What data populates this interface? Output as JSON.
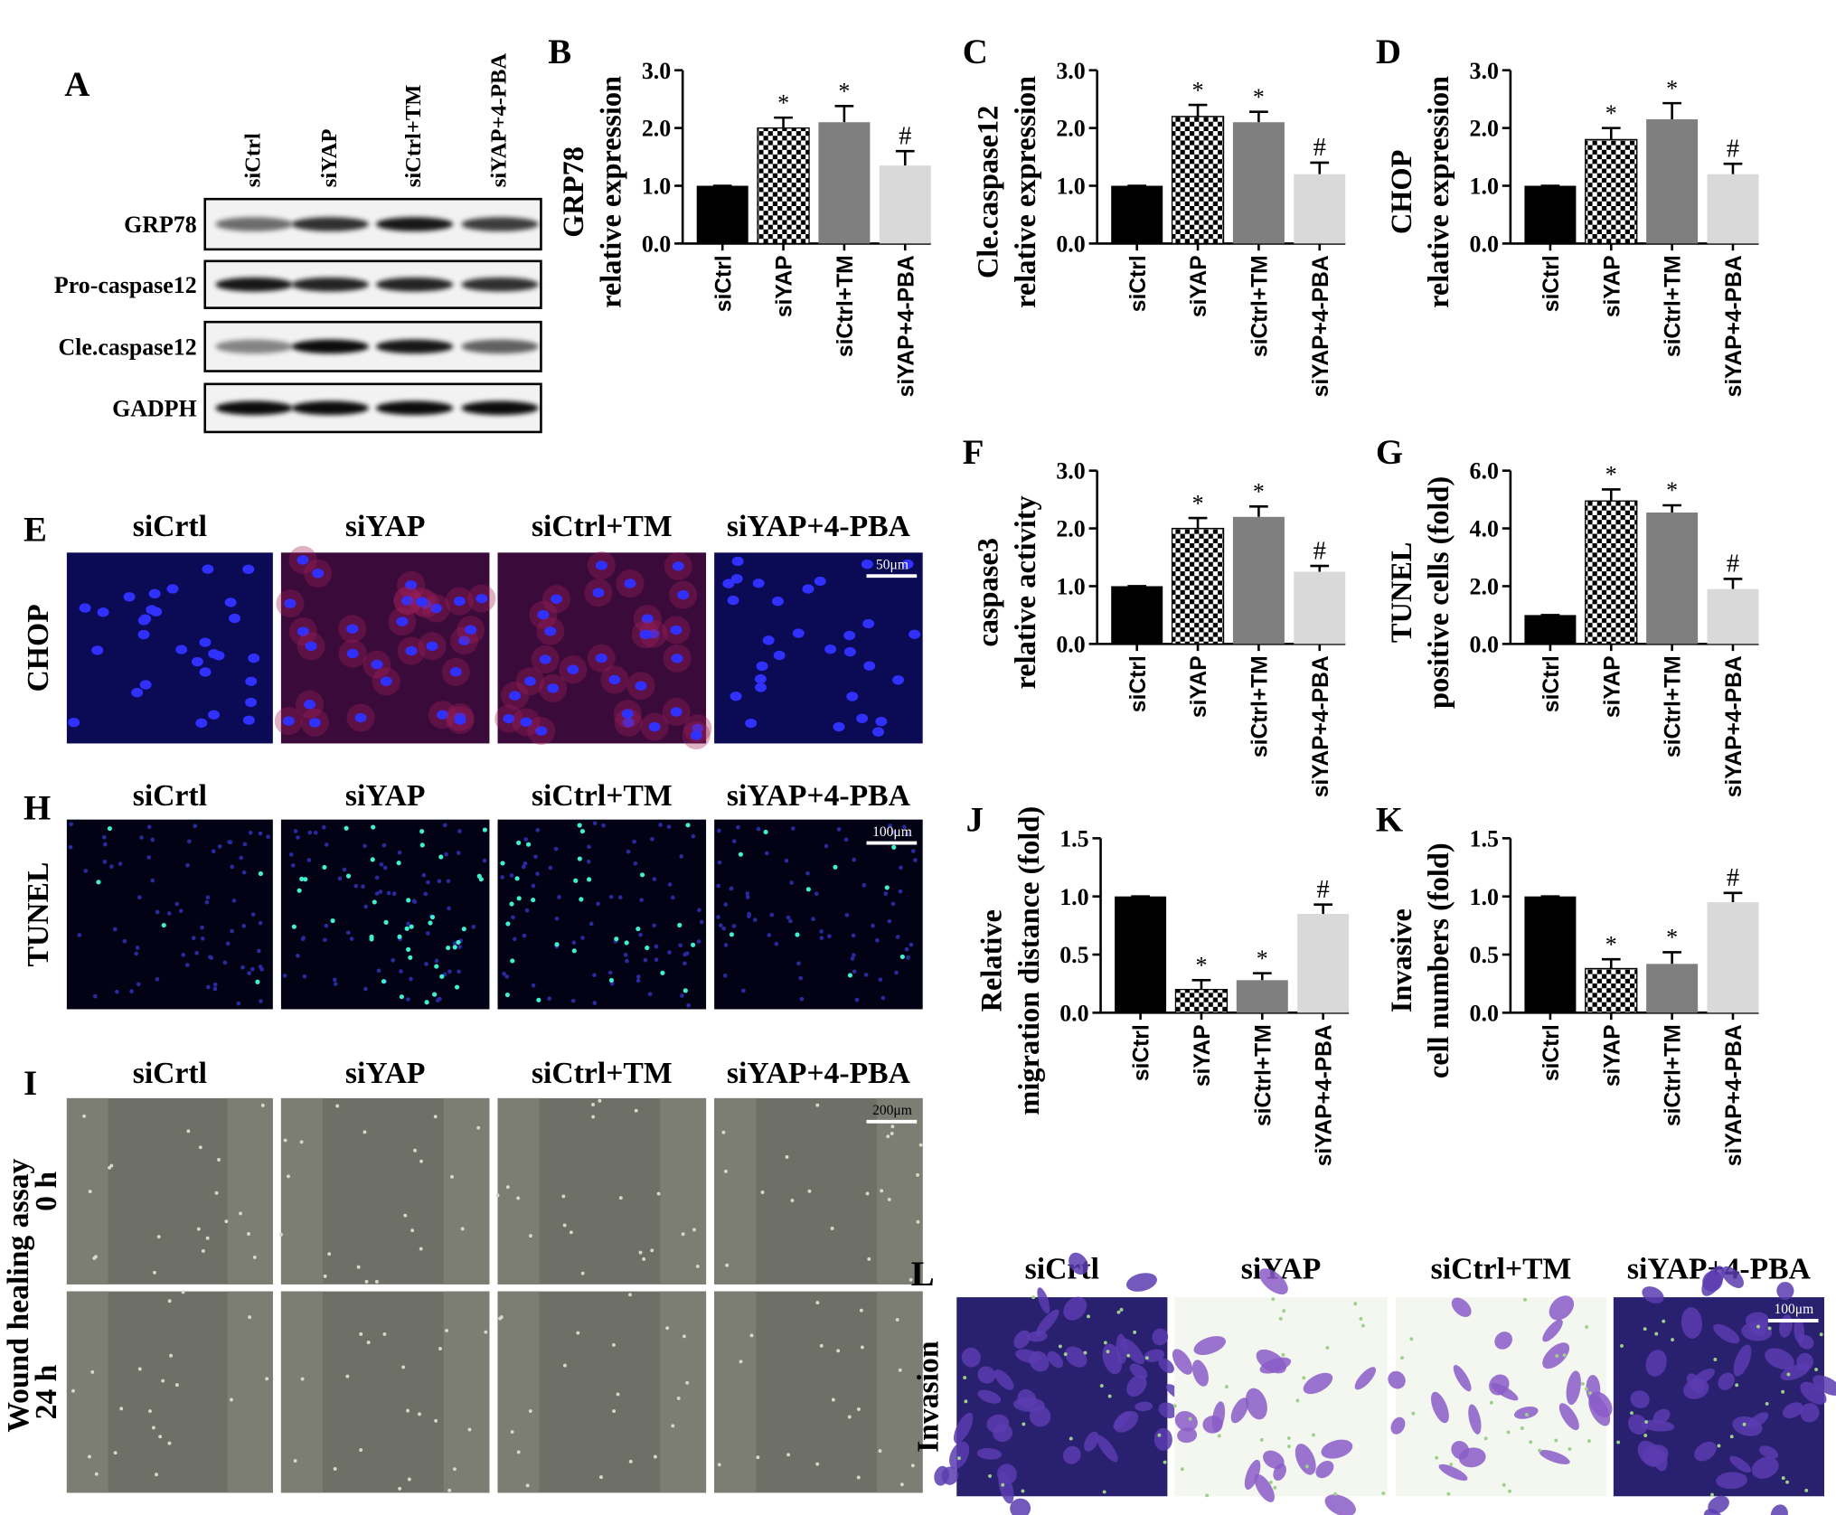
{
  "blot": {
    "panel_label": "A",
    "lanes": [
      "siCtrl",
      "siYAP",
      "siCtrl+TM",
      "siYAP+4-PBA"
    ],
    "rows": [
      "GRP78",
      "Pro-caspase12",
      "Cle.caspase12",
      "GADPH"
    ]
  },
  "image_panels": [
    {
      "panel_label": "E",
      "headers": [
        "siCrtl",
        "siYAP",
        "siCtrl+TM",
        "siYAP+4-PBA"
      ],
      "rows": [
        "CHOP"
      ],
      "scale_bar": "50μm"
    },
    {
      "panel_label": "H",
      "headers": [
        "siCrtl",
        "siYAP",
        "siCtrl+TM",
        "siYAP+4-PBA"
      ],
      "rows": [
        "TUNEL"
      ],
      "scale_bar": "100μm"
    },
    {
      "panel_label": "I",
      "headers": [
        "siCrtl",
        "siYAP",
        "siCtrl+TM",
        "siYAP+4-PBA"
      ],
      "group_label": "Wound healing assay",
      "rows": [
        "0 h",
        "24 h"
      ],
      "scale_bar": "200μm"
    },
    {
      "panel_label": "L",
      "headers": [
        "siCrtl",
        "siYAP",
        "siCtrl+TM",
        "siYAP+4-PBA"
      ],
      "rows": [
        "Invasion"
      ],
      "scale_bar": "100μm"
    }
  ],
  "chart_data": [
    {
      "type": "bar",
      "panel_label": "B",
      "ylabel": [
        "GRP78",
        "relative expression"
      ],
      "categories": [
        "siCtrl",
        "siYAP",
        "siCtrl+TM",
        "siYAP+4-PBA"
      ],
      "values": [
        1.0,
        2.0,
        2.1,
        1.35
      ],
      "errors": [
        0,
        0.18,
        0.28,
        0.25
      ],
      "annotations": [
        null,
        "*",
        "*",
        "#"
      ],
      "colors": [
        "#000000",
        "#000000",
        "#7f7f7f",
        "#d9d9d9"
      ],
      "hatch": [
        null,
        "checkerboard",
        null,
        null
      ],
      "ylim": [
        0,
        3
      ],
      "yticks": [
        {
          "value": 0,
          "label": "0.0"
        },
        {
          "value": 1,
          "label": "1.0"
        },
        {
          "value": 2,
          "label": "2.0"
        },
        {
          "value": 3,
          "label": "3.0"
        }
      ]
    },
    {
      "type": "bar",
      "panel_label": "C",
      "ylabel": [
        "Cle.caspase12",
        "relative expression"
      ],
      "categories": [
        "siCtrl",
        "siYAP",
        "siCtrl+TM",
        "siYAP+4-PBA"
      ],
      "values": [
        1.0,
        2.2,
        2.1,
        1.2
      ],
      "errors": [
        0,
        0.2,
        0.18,
        0.2
      ],
      "annotations": [
        null,
        "*",
        "*",
        "#"
      ],
      "colors": [
        "#000000",
        "#000000",
        "#7f7f7f",
        "#d9d9d9"
      ],
      "hatch": [
        null,
        "checkerboard",
        null,
        null
      ],
      "ylim": [
        0,
        3
      ],
      "yticks": [
        {
          "value": 0,
          "label": "0.0"
        },
        {
          "value": 1,
          "label": "1.0"
        },
        {
          "value": 2,
          "label": "2.0"
        },
        {
          "value": 3,
          "label": "3.0"
        }
      ]
    },
    {
      "type": "bar",
      "panel_label": "D",
      "ylabel": [
        "CHOP",
        "relative expression"
      ],
      "categories": [
        "siCtrl",
        "siYAP",
        "siCtrl+TM",
        "siYAP+4-PBA"
      ],
      "values": [
        1.0,
        1.8,
        2.15,
        1.2
      ],
      "errors": [
        0,
        0.2,
        0.28,
        0.18
      ],
      "annotations": [
        null,
        "*",
        "*",
        "#"
      ],
      "colors": [
        "#000000",
        "#000000",
        "#7f7f7f",
        "#d9d9d9"
      ],
      "hatch": [
        null,
        "checkerboard",
        null,
        null
      ],
      "ylim": [
        0,
        3
      ],
      "yticks": [
        {
          "value": 0,
          "label": "0.0"
        },
        {
          "value": 1,
          "label": "1.0"
        },
        {
          "value": 2,
          "label": "2.0"
        },
        {
          "value": 3,
          "label": "3.0"
        }
      ]
    },
    {
      "type": "bar",
      "panel_label": "F",
      "ylabel": [
        "caspase3",
        "relative activity"
      ],
      "categories": [
        "siCtrl",
        "siYAP",
        "siCtrl+TM",
        "siYAP+4-PBA"
      ],
      "values": [
        1.0,
        2.0,
        2.2,
        1.25
      ],
      "errors": [
        0,
        0.18,
        0.18,
        0.1
      ],
      "annotations": [
        null,
        "*",
        "*",
        "#"
      ],
      "colors": [
        "#000000",
        "#000000",
        "#7f7f7f",
        "#d9d9d9"
      ],
      "hatch": [
        null,
        "checkerboard",
        null,
        null
      ],
      "ylim": [
        0,
        3
      ],
      "yticks": [
        {
          "value": 0,
          "label": "0.0"
        },
        {
          "value": 1,
          "label": "1.0"
        },
        {
          "value": 2,
          "label": "2.0"
        },
        {
          "value": 3,
          "label": "3.0"
        }
      ]
    },
    {
      "type": "bar",
      "panel_label": "G",
      "ylabel": [
        "TUNEL",
        "positive cells (fold)"
      ],
      "categories": [
        "siCtrl",
        "siYAP",
        "siCtrl+TM",
        "siYAP+4-PBA"
      ],
      "values": [
        1.0,
        4.95,
        4.55,
        1.9
      ],
      "errors": [
        0,
        0.4,
        0.25,
        0.35
      ],
      "annotations": [
        null,
        "*",
        "*",
        "#"
      ],
      "colors": [
        "#000000",
        "#000000",
        "#7f7f7f",
        "#d9d9d9"
      ],
      "hatch": [
        null,
        "checkerboard",
        null,
        null
      ],
      "ylim": [
        0,
        6
      ],
      "yticks": [
        {
          "value": 0,
          "label": "0.0"
        },
        {
          "value": 2,
          "label": "2.0"
        },
        {
          "value": 4,
          "label": "4.0"
        },
        {
          "value": 6,
          "label": "6.0"
        }
      ]
    },
    {
      "type": "bar",
      "panel_label": "J",
      "ylabel": [
        "Relative",
        "migration distance (fold)"
      ],
      "categories": [
        "siCtrl",
        "siYAP",
        "siCtrl+TM",
        "siYAP+4-PBA"
      ],
      "values": [
        1.0,
        0.2,
        0.28,
        0.85
      ],
      "errors": [
        0,
        0.08,
        0.06,
        0.08
      ],
      "annotations": [
        null,
        "*",
        "*",
        "#"
      ],
      "colors": [
        "#000000",
        "#000000",
        "#7f7f7f",
        "#d9d9d9"
      ],
      "hatch": [
        null,
        "checkerboard",
        null,
        null
      ],
      "ylim": [
        0,
        1.5
      ],
      "yticks": [
        {
          "value": 0,
          "label": "0.0"
        },
        {
          "value": 0.5,
          "label": "0.5"
        },
        {
          "value": 1,
          "label": "1.0"
        },
        {
          "value": 1.5,
          "label": "1.5"
        }
      ]
    },
    {
      "type": "bar",
      "panel_label": "K",
      "ylabel": [
        "Invasive",
        "cell numbers (fold)"
      ],
      "categories": [
        "siCtrl",
        "siYAP",
        "siCtrl+TM",
        "siYAP+4-PBA"
      ],
      "values": [
        1.0,
        0.38,
        0.42,
        0.95
      ],
      "errors": [
        0,
        0.08,
        0.1,
        0.08
      ],
      "annotations": [
        null,
        "*",
        "*",
        "#"
      ],
      "colors": [
        "#000000",
        "#000000",
        "#7f7f7f",
        "#d9d9d9"
      ],
      "hatch": [
        null,
        "checkerboard",
        null,
        null
      ],
      "ylim": [
        0,
        1.5
      ],
      "yticks": [
        {
          "value": 0,
          "label": "0.0"
        },
        {
          "value": 0.5,
          "label": "0.5"
        },
        {
          "value": 1,
          "label": "1.0"
        },
        {
          "value": 1.5,
          "label": "1.5"
        }
      ]
    }
  ]
}
